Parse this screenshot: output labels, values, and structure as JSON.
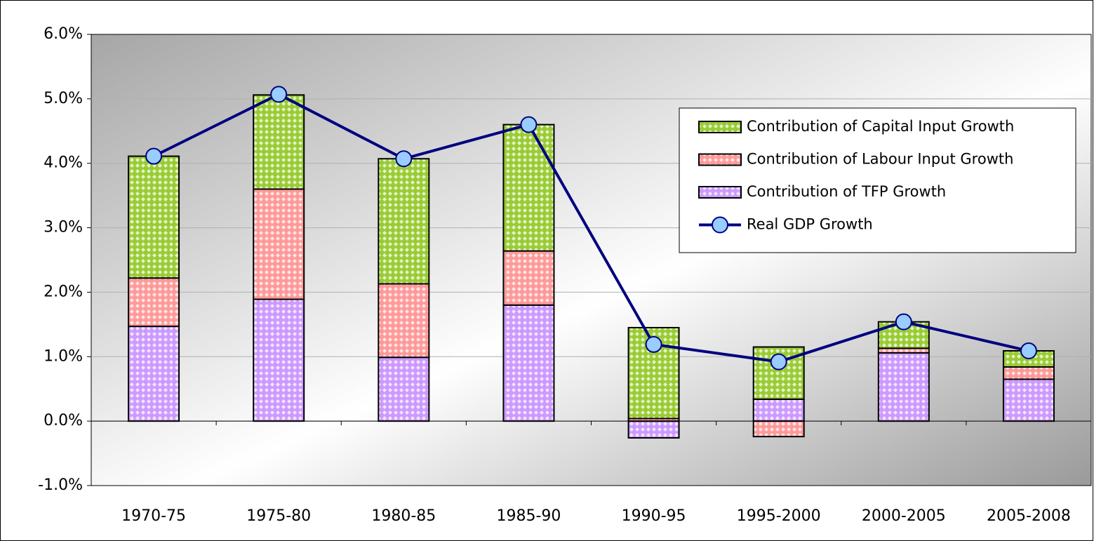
{
  "chart_data": {
    "type": "bar",
    "categories": [
      "1970-75",
      "1975-80",
      "1980-85",
      "1985-90",
      "1990-95",
      "1995-2000",
      "2000-2005",
      "2005-2008"
    ],
    "series": [
      {
        "name": "Contribution of Capital Input Growth",
        "color": "#99cc33",
        "values": [
          1.89,
          1.46,
          1.94,
          1.96,
          1.41,
          0.81,
          0.41,
          0.25
        ]
      },
      {
        "name": "Contribution of Labour Input Growth",
        "color": "#ff9999",
        "values": [
          0.75,
          1.71,
          1.14,
          0.84,
          0.04,
          -0.24,
          0.07,
          0.19
        ]
      },
      {
        "name": "Contribution of TFP Growth",
        "color": "#cc99ff",
        "values": [
          1.47,
          1.89,
          0.99,
          1.8,
          -0.26,
          0.34,
          1.06,
          0.65
        ]
      },
      {
        "name": "Real GDP Growth",
        "type": "line",
        "color": "#000080",
        "marker_color": "#99ccff",
        "values": [
          4.11,
          5.07,
          4.07,
          4.6,
          1.19,
          0.92,
          1.54,
          1.09
        ]
      }
    ],
    "ylim": [
      -1,
      6
    ],
    "yticks": [
      {
        "value": -1,
        "label": "-1.0%"
      },
      {
        "value": 0,
        "label": "0.0%"
      },
      {
        "value": 1,
        "label": "1.0%"
      },
      {
        "value": 2,
        "label": "2.0%"
      },
      {
        "value": 3,
        "label": "3.0%"
      },
      {
        "value": 4,
        "label": "4.0%"
      },
      {
        "value": 5,
        "label": "5.0%"
      },
      {
        "value": 6,
        "label": "6.0%"
      }
    ],
    "grid": true,
    "legend": "top-right"
  }
}
